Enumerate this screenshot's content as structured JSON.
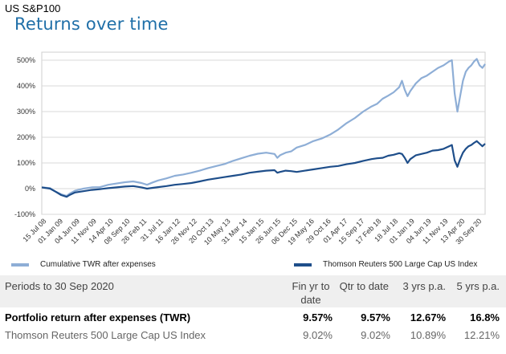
{
  "header": {
    "small": "US S&P100",
    "title": "Returns over time"
  },
  "chart_data": {
    "type": "line",
    "yticks": [
      "500%",
      "400%",
      "300%",
      "200%",
      "100%",
      "0%",
      "-100%"
    ],
    "ylim": [
      -100,
      500
    ],
    "xticks": [
      "15 Jul 08",
      "01 Jan 09",
      "04 Jun 09",
      "11 Nov 09",
      "14 Apr 10",
      "08 Sep 10",
      "26 Feb 11",
      "31 Jul 11",
      "16 Jan 12",
      "26 Nov 12",
      "20 Oct 13",
      "10 May 13",
      "31 Mar 14",
      "15 Jan 15",
      "26 Jun 15",
      "06 Dec 15",
      "19 May 16",
      "29 Oct 16",
      "01 Apr 17",
      "15 Sep 17",
      "17 Feb 18",
      "18 Jul 18",
      "01 Jan 19",
      "04 Jun 19",
      "11 Nov 19",
      "13 Apr 20",
      "30 Sep 20"
    ],
    "grid": true,
    "legend_position": "bottom",
    "series": [
      {
        "name": "Cumulative TWR after expenses",
        "color": "#8eaed6",
        "points": [
          [
            0,
            5
          ],
          [
            3,
            2
          ],
          [
            5,
            -12
          ],
          [
            7,
            -22
          ],
          [
            9,
            -28
          ],
          [
            10,
            -20
          ],
          [
            12,
            -8
          ],
          [
            15,
            0
          ],
          [
            18,
            5
          ],
          [
            21,
            6
          ],
          [
            24,
            15
          ],
          [
            27,
            20
          ],
          [
            30,
            25
          ],
          [
            33,
            28
          ],
          [
            36,
            22
          ],
          [
            38,
            15
          ],
          [
            40,
            24
          ],
          [
            42,
            32
          ],
          [
            45,
            40
          ],
          [
            48,
            50
          ],
          [
            51,
            55
          ],
          [
            54,
            62
          ],
          [
            57,
            70
          ],
          [
            60,
            80
          ],
          [
            63,
            88
          ],
          [
            66,
            96
          ],
          [
            69,
            108
          ],
          [
            72,
            118
          ],
          [
            75,
            128
          ],
          [
            78,
            136
          ],
          [
            81,
            140
          ],
          [
            84,
            135
          ],
          [
            85,
            120
          ],
          [
            86,
            130
          ],
          [
            88,
            140
          ],
          [
            90,
            145
          ],
          [
            92,
            160
          ],
          [
            95,
            170
          ],
          [
            98,
            185
          ],
          [
            101,
            195
          ],
          [
            104,
            210
          ],
          [
            107,
            230
          ],
          [
            110,
            255
          ],
          [
            113,
            275
          ],
          [
            116,
            300
          ],
          [
            119,
            320
          ],
          [
            121,
            330
          ],
          [
            123,
            350
          ],
          [
            125,
            362
          ],
          [
            127,
            375
          ],
          [
            129,
            395
          ],
          [
            130,
            420
          ],
          [
            131,
            385
          ],
          [
            132,
            360
          ],
          [
            133,
            380
          ],
          [
            135,
            410
          ],
          [
            137,
            430
          ],
          [
            139,
            440
          ],
          [
            141,
            455
          ],
          [
            143,
            470
          ],
          [
            145,
            480
          ],
          [
            147,
            495
          ],
          [
            148,
            500
          ],
          [
            149,
            370
          ],
          [
            150,
            300
          ],
          [
            151,
            360
          ],
          [
            152,
            420
          ],
          [
            153,
            455
          ],
          [
            154,
            470
          ],
          [
            155,
            480
          ],
          [
            156,
            495
          ],
          [
            157,
            505
          ],
          [
            158,
            480
          ],
          [
            159,
            470
          ],
          [
            160,
            485
          ]
        ]
      },
      {
        "name": "Thomson Reuters 500 Large Cap US Index",
        "color": "#1e4e8a",
        "points": [
          [
            0,
            5
          ],
          [
            3,
            0
          ],
          [
            5,
            -12
          ],
          [
            7,
            -25
          ],
          [
            9,
            -32
          ],
          [
            10,
            -25
          ],
          [
            12,
            -15
          ],
          [
            15,
            -10
          ],
          [
            18,
            -5
          ],
          [
            21,
            -2
          ],
          [
            24,
            2
          ],
          [
            27,
            5
          ],
          [
            30,
            8
          ],
          [
            33,
            10
          ],
          [
            36,
            5
          ],
          [
            38,
            0
          ],
          [
            40,
            3
          ],
          [
            42,
            6
          ],
          [
            45,
            10
          ],
          [
            48,
            15
          ],
          [
            51,
            18
          ],
          [
            54,
            22
          ],
          [
            57,
            28
          ],
          [
            60,
            35
          ],
          [
            63,
            40
          ],
          [
            66,
            45
          ],
          [
            69,
            50
          ],
          [
            72,
            55
          ],
          [
            75,
            62
          ],
          [
            78,
            66
          ],
          [
            81,
            70
          ],
          [
            84,
            72
          ],
          [
            85,
            62
          ],
          [
            86,
            65
          ],
          [
            88,
            70
          ],
          [
            90,
            68
          ],
          [
            92,
            65
          ],
          [
            95,
            70
          ],
          [
            98,
            75
          ],
          [
            101,
            80
          ],
          [
            104,
            85
          ],
          [
            107,
            88
          ],
          [
            110,
            95
          ],
          [
            113,
            100
          ],
          [
            116,
            108
          ],
          [
            119,
            115
          ],
          [
            121,
            118
          ],
          [
            123,
            120
          ],
          [
            125,
            128
          ],
          [
            127,
            132
          ],
          [
            129,
            138
          ],
          [
            130,
            135
          ],
          [
            131,
            120
          ],
          [
            132,
            100
          ],
          [
            133,
            115
          ],
          [
            135,
            130
          ],
          [
            137,
            135
          ],
          [
            139,
            140
          ],
          [
            141,
            148
          ],
          [
            143,
            150
          ],
          [
            145,
            155
          ],
          [
            147,
            165
          ],
          [
            148,
            170
          ],
          [
            149,
            110
          ],
          [
            150,
            85
          ],
          [
            151,
            115
          ],
          [
            152,
            140
          ],
          [
            153,
            155
          ],
          [
            154,
            165
          ],
          [
            155,
            170
          ],
          [
            156,
            178
          ],
          [
            157,
            185
          ],
          [
            158,
            175
          ],
          [
            159,
            165
          ],
          [
            160,
            175
          ]
        ]
      }
    ]
  },
  "legend": {
    "item1": "Cumulative TWR after expenses",
    "item2": "Thomson Reuters 500 Large Cap US Index",
    "item1_color": "#8eaed6",
    "item2_color": "#1e4e8a"
  },
  "table": {
    "period_label": "Periods to 30 Sep 2020",
    "col_fin_yr": "Fin yr to",
    "col_fin_yr2": "date",
    "col_qtr": "Qtr to date",
    "col_3yr": "3 yrs p.a.",
    "col_5yr": "5 yrs p.a.",
    "rows": [
      {
        "label": "Portfolio return after expenses (TWR)",
        "fin": "9.57%",
        "qtr": "9.57%",
        "y3": "12.67%",
        "y5": "16.8%"
      },
      {
        "label": "Thomson Reuters 500 Large Cap US Index",
        "fin": "9.02%",
        "qtr": "9.02%",
        "y3": "10.89%",
        "y5": "12.21%"
      }
    ]
  }
}
